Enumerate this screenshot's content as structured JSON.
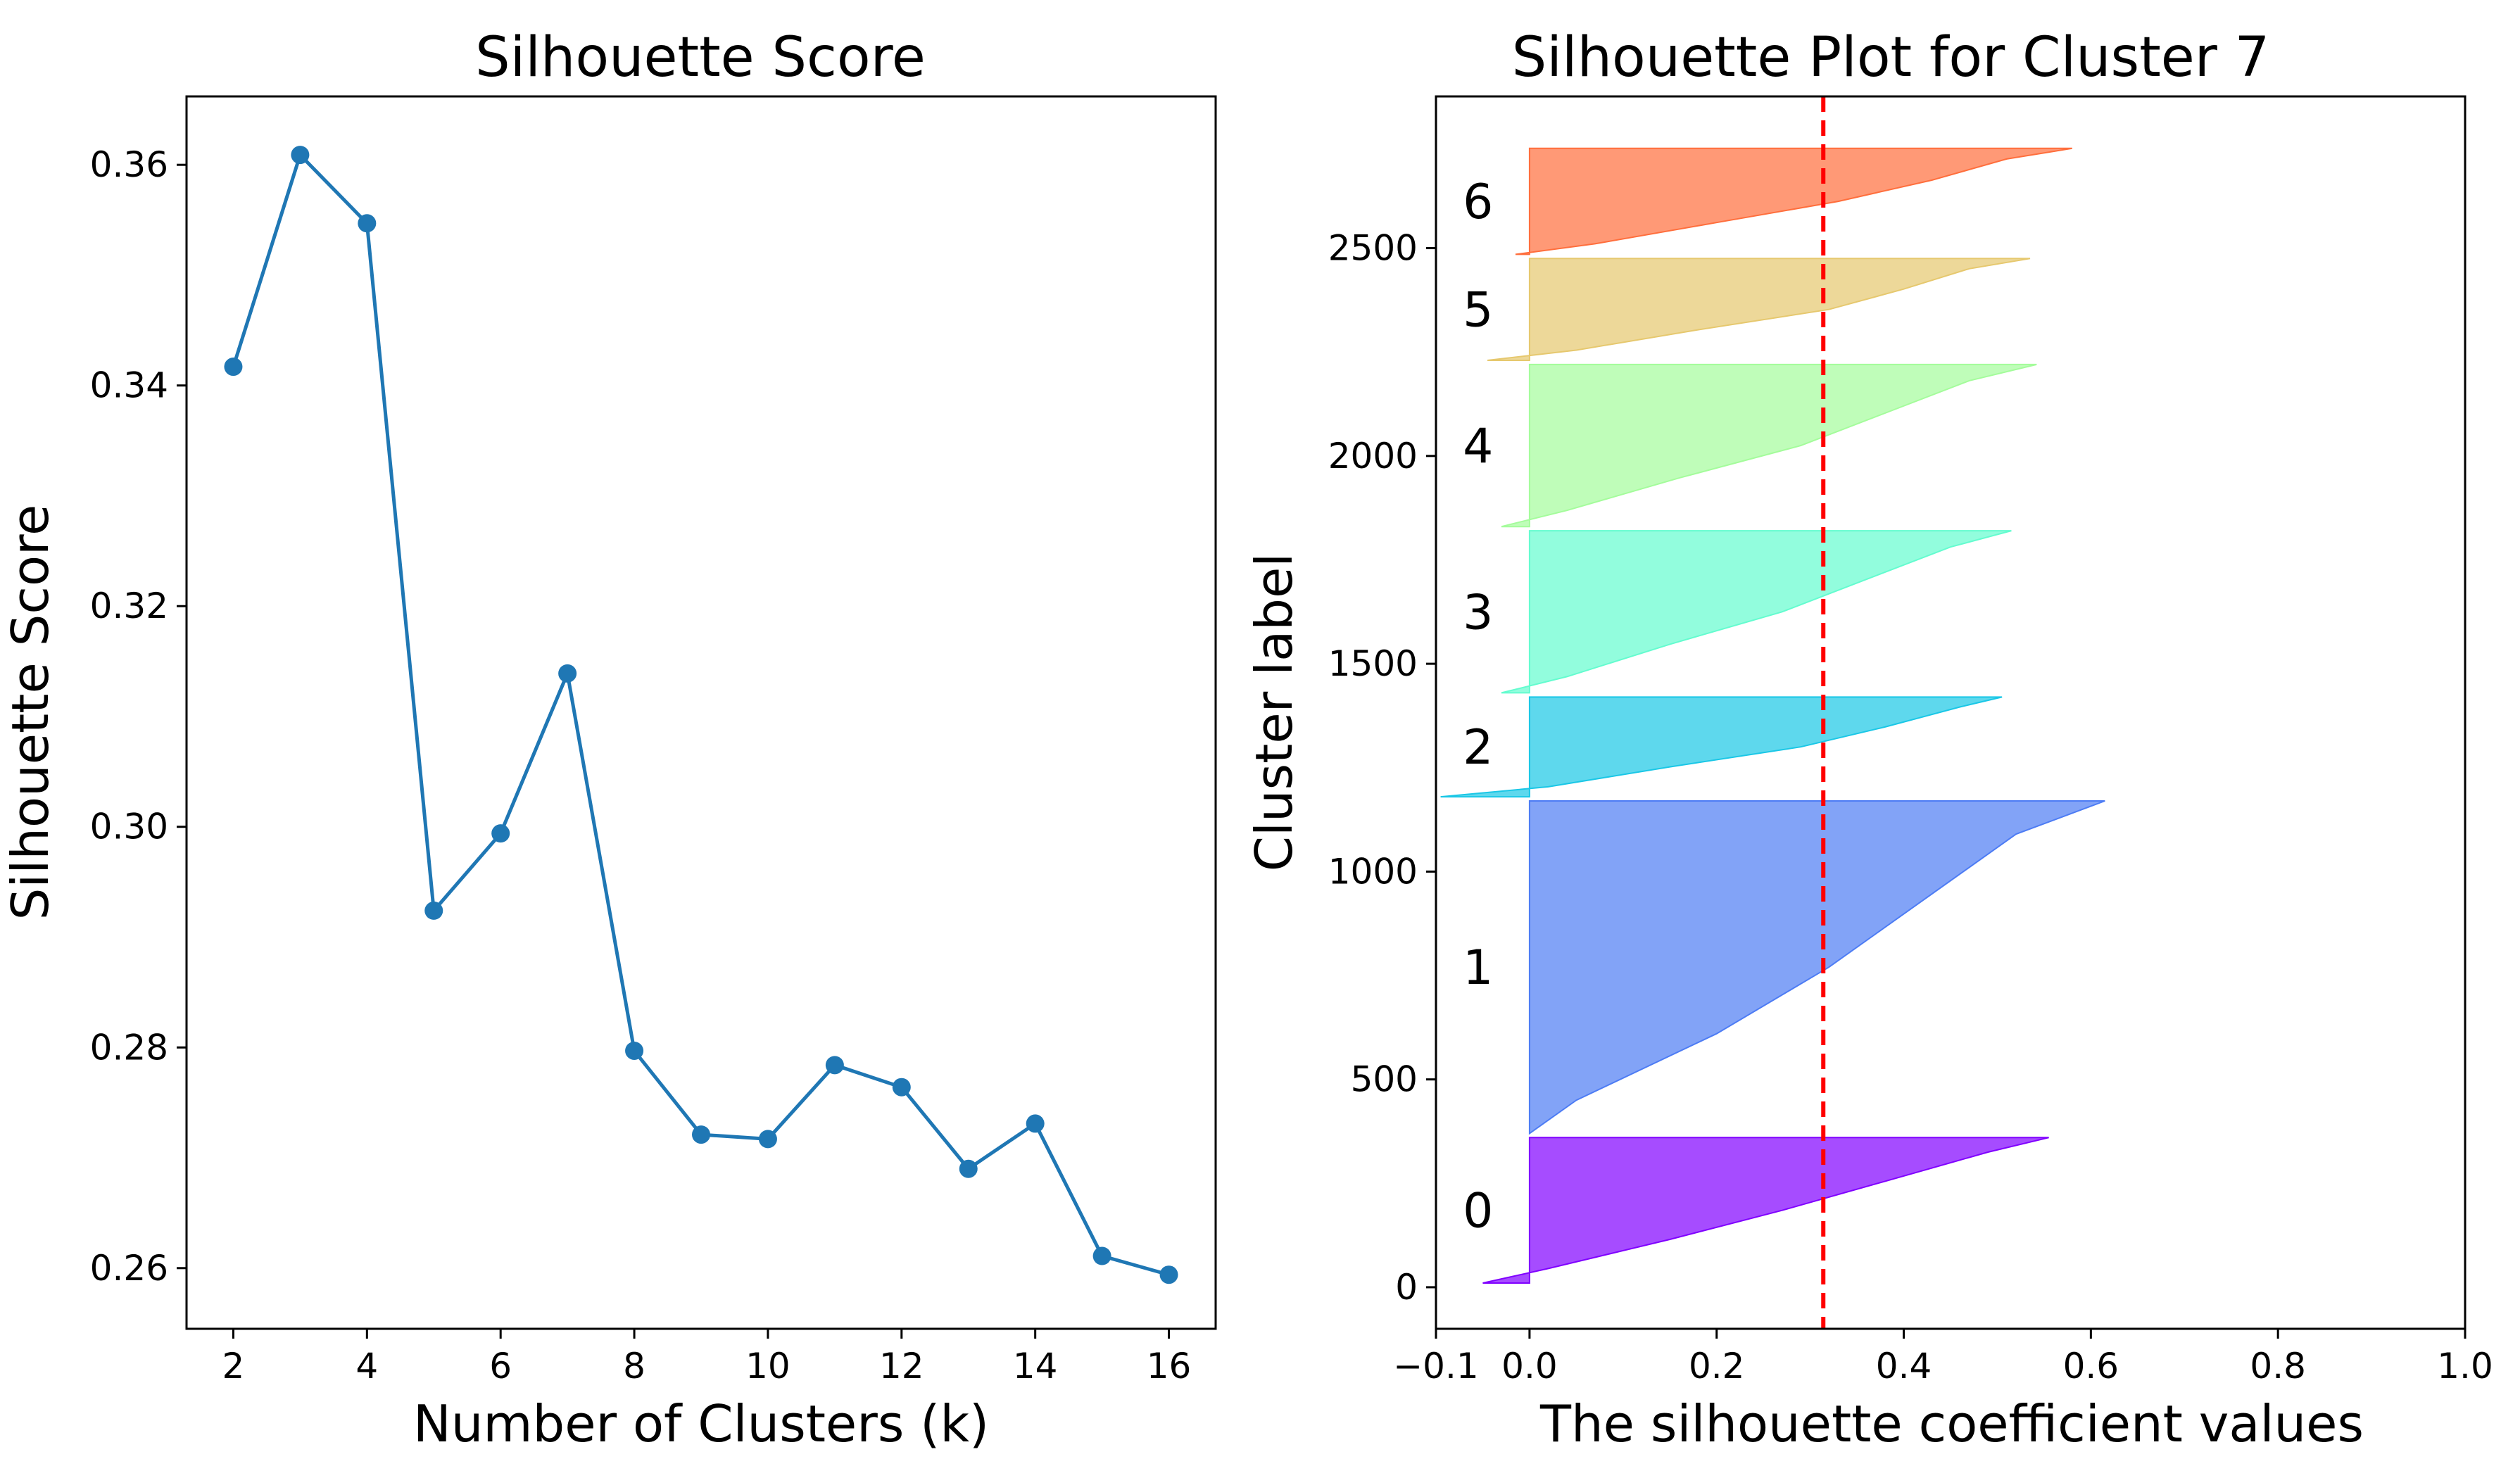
{
  "chart_data": [
    {
      "type": "line",
      "title": "Silhouette Score",
      "xlabel": "Number of Clusters (k)",
      "ylabel": "Silhouette Score",
      "xlim": [
        1.3,
        16.7
      ],
      "ylim": [
        0.2545,
        0.3662
      ],
      "xticks": [
        2,
        4,
        6,
        8,
        10,
        12,
        14,
        16
      ],
      "yticks": [
        0.26,
        0.28,
        0.3,
        0.32,
        0.34,
        0.36
      ],
      "ytick_labels": [
        "0.26",
        "0.28",
        "0.30",
        "0.32",
        "0.34",
        "0.36"
      ],
      "marker": "circle",
      "color": "#1f77b4",
      "grid": false,
      "series": [
        {
          "x": [
            2,
            3,
            4,
            5,
            6,
            7,
            8,
            9,
            10,
            11,
            12,
            13,
            14,
            15,
            16
          ],
          "values": [
            0.3417,
            0.3609,
            0.3547,
            0.2924,
            0.2994,
            0.3139,
            0.2797,
            0.2721,
            0.2717,
            0.2784,
            0.2764,
            0.269,
            0.2731,
            0.2611,
            0.2594
          ]
        }
      ]
    },
    {
      "type": "area",
      "title": "Silhouette Plot for Cluster 7",
      "xlabel": "The silhouette coefficient values",
      "ylabel": "Cluster label",
      "xlim": [
        -0.1,
        1.0
      ],
      "ylim": [
        -100,
        2865
      ],
      "xticks": [
        -0.1,
        0.0,
        0.2,
        0.4,
        0.6,
        0.8,
        1.0
      ],
      "xtick_labels": [
        "−0.1",
        "0.0",
        "0.2",
        "0.4",
        "0.6",
        "0.8",
        "1.0"
      ],
      "yticks": [
        0,
        500,
        1000,
        1500,
        2000,
        2500
      ],
      "grid": false,
      "average_line": {
        "value": 0.314,
        "color": "#ff0000",
        "style": "dashed"
      },
      "clusters": [
        {
          "label": "0",
          "start": 10,
          "end": 360,
          "min": -0.05,
          "p10": 0.02,
          "p30": 0.15,
          "p50": 0.27,
          "p70": 0.38,
          "p90": 0.49,
          "max": 0.555,
          "color": "#8000ff"
        },
        {
          "label": "1",
          "start": 370,
          "end": 1170,
          "min": 0.0,
          "p10": 0.05,
          "p30": 0.2,
          "p50": 0.32,
          "p70": 0.42,
          "p90": 0.52,
          "max": 0.615,
          "color": "#4d7cf4"
        },
        {
          "label": "2",
          "start": 1180,
          "end": 1420,
          "min": -0.095,
          "p10": 0.02,
          "p30": 0.15,
          "p50": 0.29,
          "p70": 0.38,
          "p90": 0.46,
          "max": 0.505,
          "color": "#1ac7e6"
        },
        {
          "label": "3",
          "start": 1430,
          "end": 1820,
          "min": -0.03,
          "p10": 0.04,
          "p30": 0.15,
          "p50": 0.27,
          "p70": 0.36,
          "p90": 0.45,
          "max": 0.515,
          "color": "#64fccf"
        },
        {
          "label": "4",
          "start": 1830,
          "end": 2220,
          "min": -0.03,
          "p10": 0.04,
          "p30": 0.16,
          "p50": 0.29,
          "p70": 0.38,
          "p90": 0.47,
          "max": 0.542,
          "color": "#a4fc9b"
        },
        {
          "label": "5",
          "start": 2230,
          "end": 2475,
          "min": -0.045,
          "p10": 0.05,
          "p30": 0.18,
          "p50": 0.32,
          "p70": 0.4,
          "p90": 0.47,
          "max": 0.535,
          "color": "#e6c86e"
        },
        {
          "label": "6",
          "start": 2485,
          "end": 2740,
          "min": -0.015,
          "p10": 0.07,
          "p30": 0.2,
          "p50": 0.33,
          "p70": 0.43,
          "p90": 0.51,
          "max": 0.58,
          "color": "#ff6e3c"
        }
      ]
    }
  ]
}
